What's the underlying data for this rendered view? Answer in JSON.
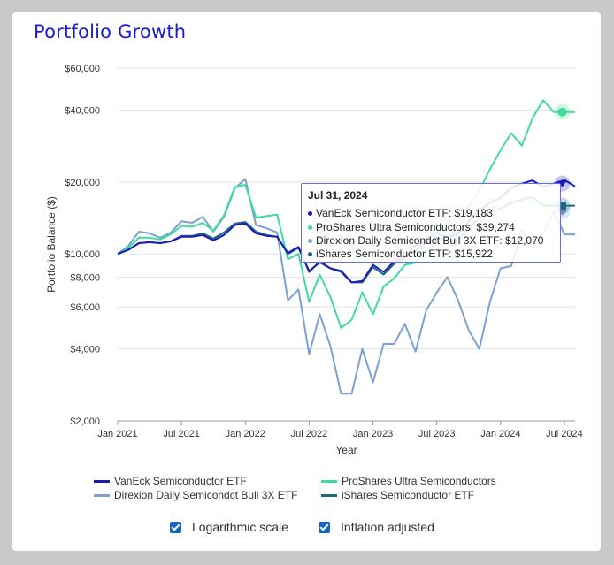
{
  "page_title": "Portfolio Growth",
  "chart_data": {
    "type": "line",
    "ylabel": "Portfolio Balance ($)",
    "xlabel": "Year",
    "yscale": "log",
    "ylim": [
      2000,
      60000
    ],
    "y_ticks": [
      2000,
      4000,
      6000,
      8000,
      10000,
      20000,
      40000,
      60000
    ],
    "y_tick_labels": [
      "$2,000",
      "$4,000",
      "$6,000",
      "$8,000",
      "$10,000",
      "$20,000",
      "$40,000",
      "$60,000"
    ],
    "x_ticks": [
      0,
      6,
      12,
      18,
      24,
      30,
      36,
      42
    ],
    "x_tick_labels": [
      "Jan 2021",
      "Jul 2021",
      "Jan 2022",
      "Jul 2022",
      "Jan 2023",
      "Jul 2023",
      "Jan 2024",
      "Jul 2024"
    ],
    "xlim": [
      0,
      43
    ],
    "series": [
      {
        "name": "VanEck Semiconductor ETF",
        "color": "#1a1ab8",
        "values": [
          10000,
          10400,
          11100,
          11200,
          11100,
          11300,
          11800,
          11800,
          12000,
          11400,
          12000,
          13200,
          13400,
          12200,
          11900,
          11800,
          10100,
          10700,
          8400,
          9300,
          8700,
          8500,
          7600,
          7700,
          9000,
          8400,
          9300,
          9800,
          10800,
          11500,
          12300,
          11700,
          12100,
          13700,
          15200,
          16400,
          17200,
          18900,
          19700,
          20300,
          19100,
          19700,
          20400,
          19183
        ]
      },
      {
        "name": "ProShares Ultra Semiconductors",
        "color": "#3edc9c",
        "values": [
          10000,
          10600,
          11700,
          11700,
          11500,
          12100,
          13100,
          13000,
          13500,
          12500,
          14500,
          19000,
          19500,
          14200,
          14400,
          14600,
          9500,
          10000,
          6300,
          8200,
          6600,
          4900,
          5300,
          6900,
          5600,
          7300,
          7900,
          9000,
          9200,
          11600,
          13400,
          11800,
          12400,
          15800,
          18400,
          22600,
          27200,
          32000,
          28400,
          37000,
          44000,
          39274,
          39274,
          39274
        ]
      },
      {
        "name": "Direxion Daily Semicondct Bull 3X ETF",
        "color": "#7ba0d4",
        "values": [
          10000,
          10800,
          12400,
          12200,
          11700,
          12300,
          13700,
          13500,
          14300,
          12400,
          14300,
          18800,
          20600,
          13200,
          12800,
          12300,
          6400,
          7100,
          3800,
          5600,
          4100,
          2600,
          2600,
          4000,
          2900,
          4200,
          4200,
          5100,
          3900,
          5800,
          6900,
          8000,
          6400,
          4800,
          4000,
          6300,
          8700,
          8900,
          12600,
          10700,
          12200,
          15100,
          12070,
          12070
        ]
      },
      {
        "name": "iShares Semiconductor ETF",
        "color": "#1e6a7a",
        "values": [
          10000,
          10400,
          11100,
          11200,
          11100,
          11300,
          11900,
          11900,
          12200,
          11600,
          12300,
          13400,
          13600,
          12400,
          12000,
          11800,
          10000,
          10600,
          8500,
          9200,
          8700,
          8400,
          7600,
          7600,
          8800,
          8200,
          9100,
          9600,
          10400,
          11000,
          11800,
          11200,
          11500,
          12800,
          14100,
          15000,
          15500,
          16400,
          16900,
          17300,
          15922,
          15922,
          15922,
          15922
        ]
      }
    ],
    "legend": [
      {
        "name": "VanEck Semiconductor ETF",
        "color": "#1a1ab8"
      },
      {
        "name": "ProShares Ultra Semiconductors",
        "color": "#3edc9c"
      },
      {
        "name": "Direxion Daily Semicondct Bull 3X ETF",
        "color": "#7ba0d4"
      },
      {
        "name": "iShares Semiconductor ETF",
        "color": "#1e6a7a"
      }
    ],
    "tooltip": {
      "date": "Jul 31, 2024",
      "rows": [
        {
          "text": "VanEck Semiconductor ETF: $19,183",
          "color": "#1a1ab8"
        },
        {
          "text": "ProShares Ultra Semiconductors: $39,274",
          "color": "#3edc9c"
        },
        {
          "text": "Direxion Daily Semicondct Bull 3X ETF: $12,070",
          "color": "#7ba0d4"
        },
        {
          "text": "iShares Semiconductor ETF: $15,922",
          "color": "#1e6a7a"
        }
      ]
    }
  },
  "options": {
    "log_label": "Logarithmic scale",
    "log_checked": true,
    "inflation_label": "Inflation adjusted",
    "inflation_checked": true
  }
}
